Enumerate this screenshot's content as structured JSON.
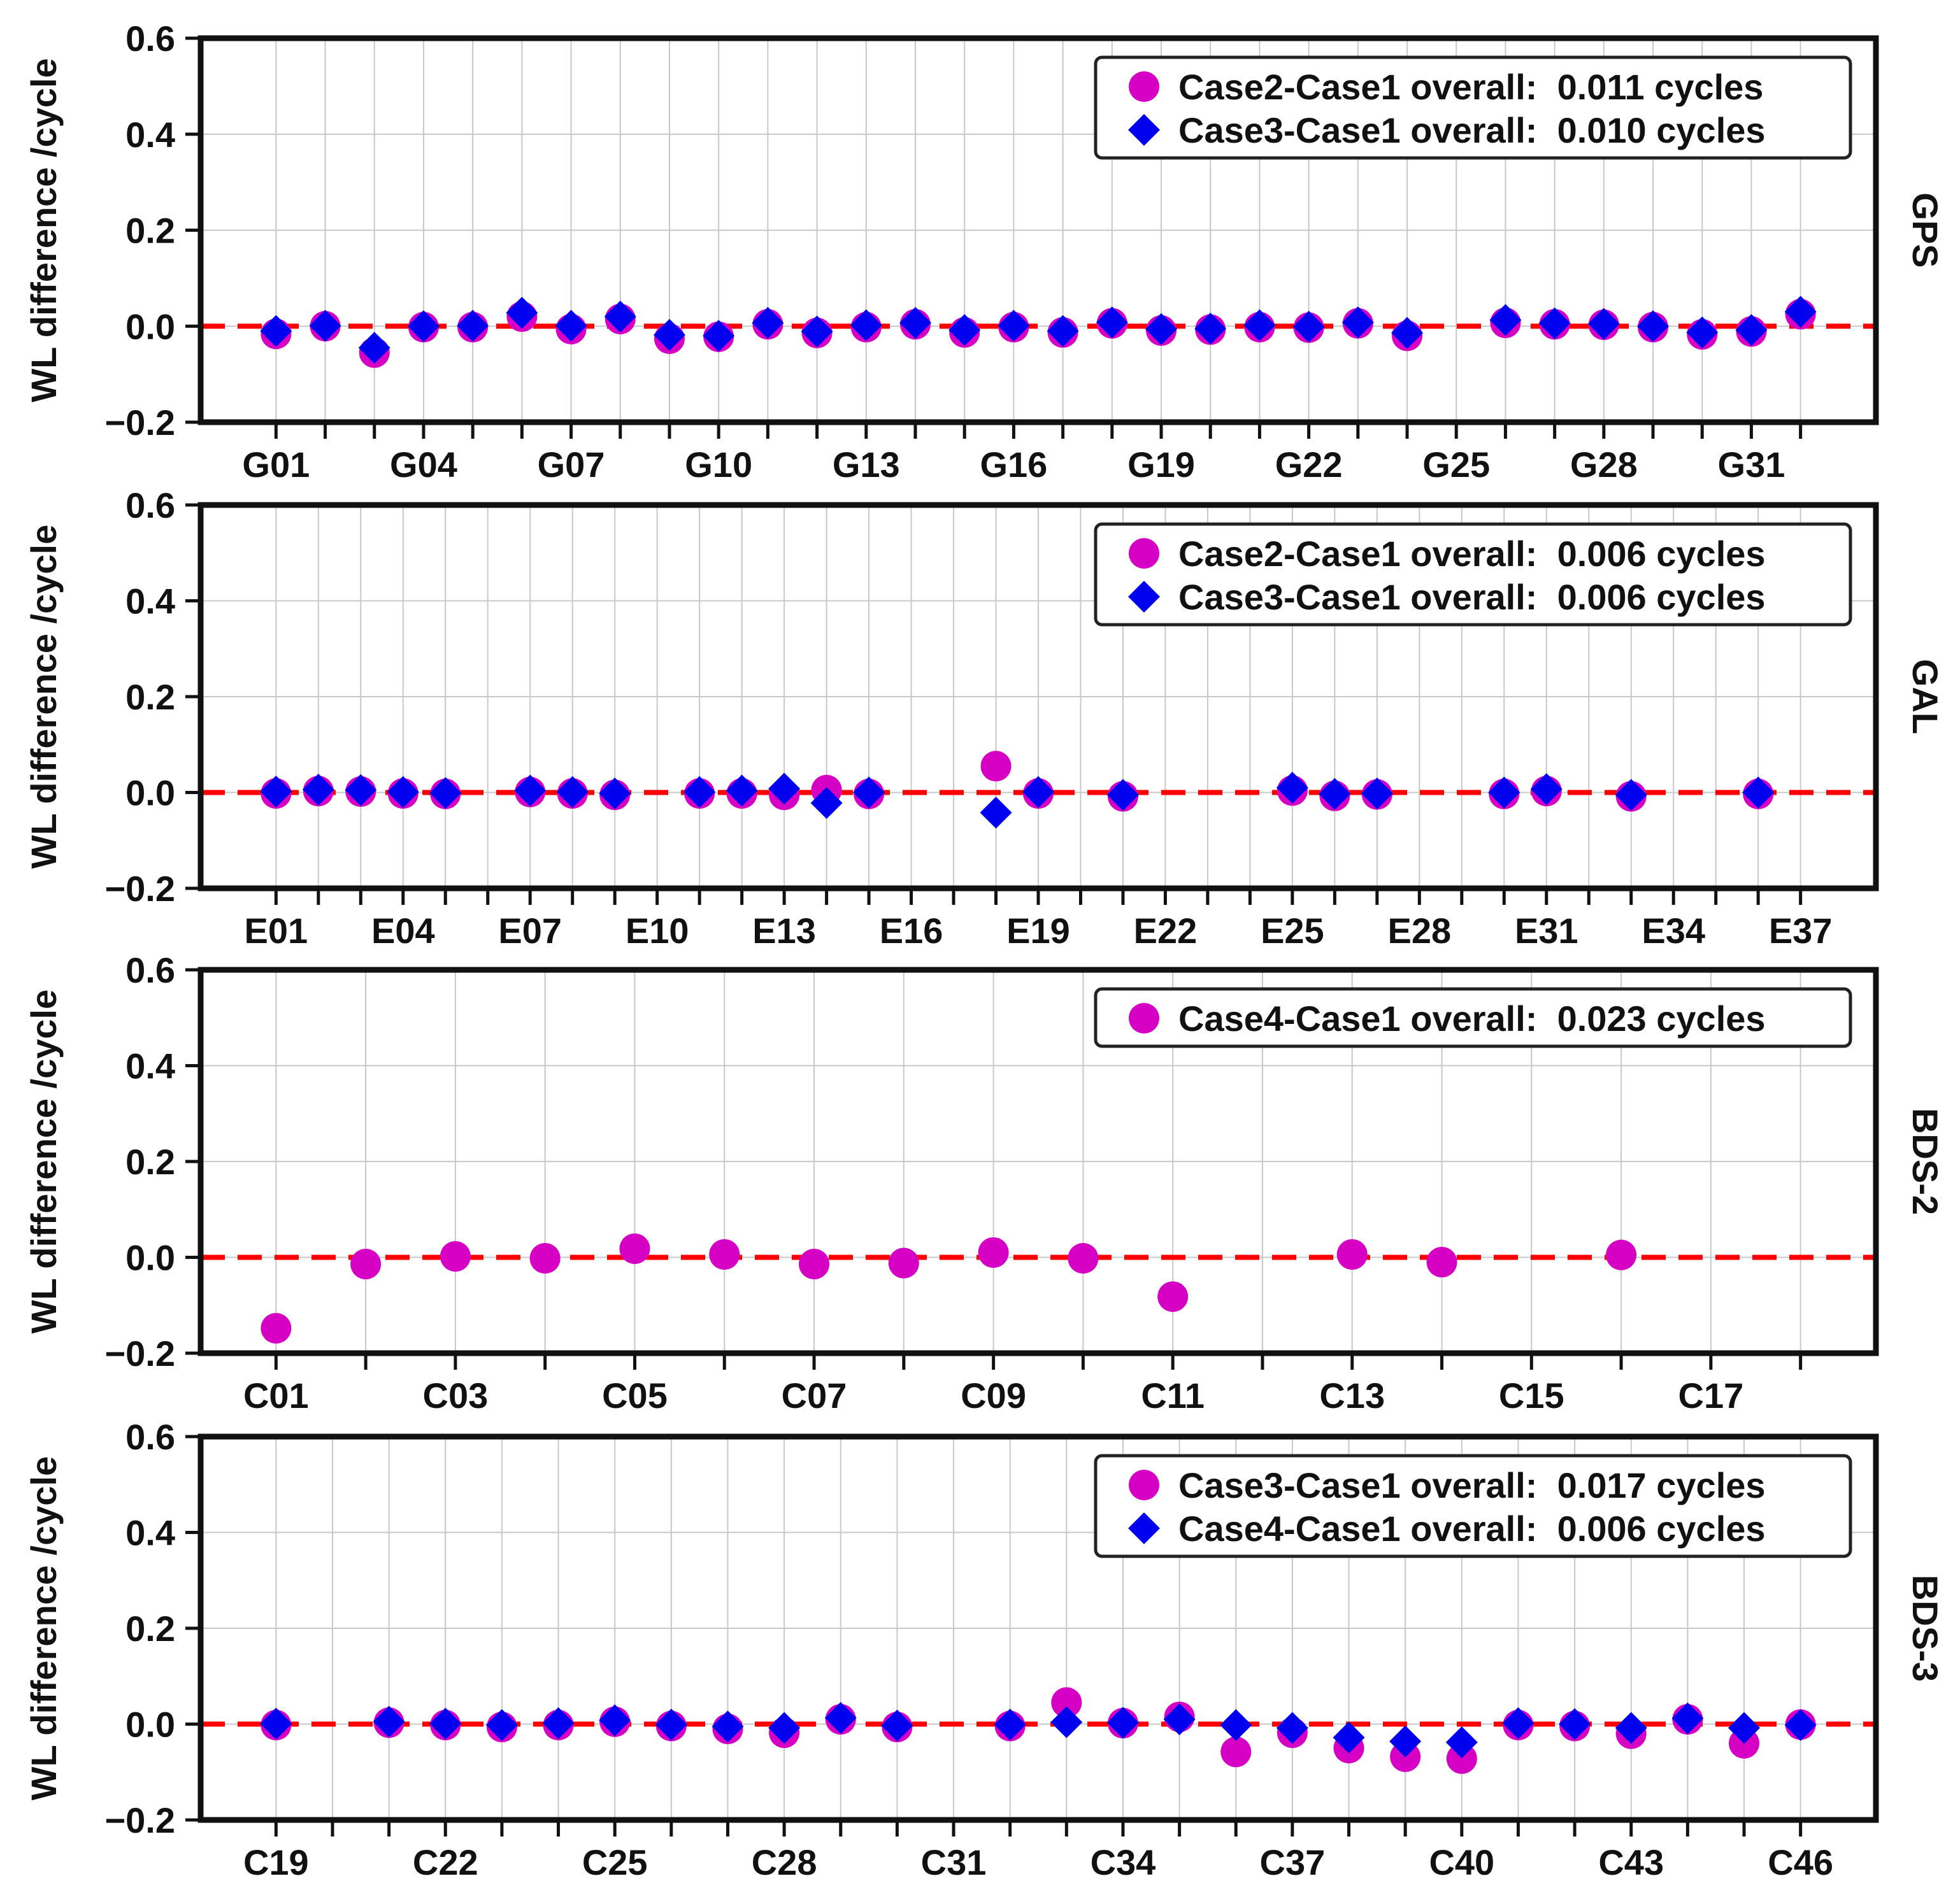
{
  "figure": {
    "ylabel": "WL difference /cycle",
    "colors": {
      "marker1": "#d600c4",
      "marker2": "#0000ee",
      "zero_line": "#ff0000",
      "grid": "#c8c8c8",
      "frame": "#111111"
    }
  },
  "chart_data": [
    {
      "type": "scatter",
      "system": "GPS",
      "ylabel": "WL difference /cycle",
      "ylim": [
        -0.2,
        0.6
      ],
      "yticks": [
        "0.6",
        "0.4",
        "0.2",
        "0.0",
        "−0.2"
      ],
      "ytick_values": [
        0.6,
        0.4,
        0.2,
        0.0,
        -0.2
      ],
      "categories": [
        "G01",
        "G02",
        "G03",
        "G04",
        "G05",
        "G06",
        "G07",
        "G08",
        "G09",
        "G10",
        "G11",
        "G12",
        "G13",
        "G14",
        "G15",
        "G16",
        "G17",
        "G18",
        "G19",
        "G20",
        "G21",
        "G22",
        "G23",
        "G24",
        "G25",
        "G26",
        "G27",
        "G28",
        "G29",
        "G30",
        "G31",
        "G32"
      ],
      "xtick_labels": [
        "G01",
        "G04",
        "G07",
        "G10",
        "G13",
        "G16",
        "G19",
        "G22",
        "G25",
        "G28",
        "G31"
      ],
      "series": [
        {
          "name": "Case2-Case1",
          "marker": "circle",
          "legend": "Case2-Case1 overall:  0.011 cycles",
          "values": [
            -0.016,
            0.0,
            -0.055,
            -0.002,
            -0.002,
            0.02,
            -0.006,
            0.015,
            -0.026,
            -0.022,
            0.004,
            -0.014,
            -0.002,
            0.004,
            -0.013,
            -0.002,
            -0.013,
            0.006,
            -0.009,
            -0.007,
            -0.002,
            -0.003,
            0.006,
            -0.02,
            null,
            0.007,
            0.004,
            0.003,
            -0.002,
            -0.017,
            -0.011,
            0.025
          ]
        },
        {
          "name": "Case3-Case1",
          "marker": "diamond",
          "legend": "Case3-Case1 overall:  0.010 cycles",
          "values": [
            -0.01,
            0.001,
            -0.045,
            0.0,
            0.001,
            0.028,
            0.001,
            0.02,
            -0.018,
            -0.02,
            0.007,
            -0.011,
            0.002,
            0.007,
            -0.008,
            0.001,
            -0.01,
            0.008,
            -0.006,
            -0.005,
            0.002,
            -0.001,
            0.008,
            -0.014,
            null,
            0.013,
            0.006,
            0.005,
            0.0,
            -0.013,
            -0.008,
            0.03
          ]
        }
      ]
    },
    {
      "type": "scatter",
      "system": "GAL",
      "ylabel": "WL difference /cycle",
      "ylim": [
        -0.2,
        0.6
      ],
      "yticks": [
        "0.6",
        "0.4",
        "0.2",
        "0.0",
        "−0.2"
      ],
      "ytick_values": [
        0.6,
        0.4,
        0.2,
        0.0,
        -0.2
      ],
      "categories": [
        "E01",
        "E02",
        "E03",
        "E04",
        "E05",
        "E06",
        "E07",
        "E08",
        "E09",
        "E10",
        "E11",
        "E12",
        "E13",
        "E14",
        "E15",
        "E16",
        "E17",
        "E18",
        "E19",
        "E20",
        "E21",
        "E22",
        "E23",
        "E24",
        "E25",
        "E26",
        "E27",
        "E28",
        "E29",
        "E30",
        "E31",
        "E32",
        "E33",
        "E34",
        "E35",
        "E36",
        "E37"
      ],
      "xtick_labels": [
        "E01",
        "E04",
        "E07",
        "E10",
        "E13",
        "E16",
        "E19",
        "E22",
        "E25",
        "E28",
        "E31",
        "E34",
        "E37"
      ],
      "series": [
        {
          "name": "Case2-Case1",
          "marker": "circle",
          "legend": "Case2-Case1 overall:  0.006 cycles",
          "values": [
            -0.002,
            0.003,
            0.002,
            -0.002,
            -0.003,
            null,
            0.001,
            -0.002,
            -0.005,
            null,
            -0.002,
            -0.002,
            -0.005,
            0.005,
            -0.003,
            null,
            null,
            0.055,
            -0.002,
            null,
            -0.008,
            null,
            null,
            null,
            0.004,
            -0.007,
            -0.004,
            null,
            null,
            -0.003,
            0.003,
            null,
            -0.008,
            null,
            null,
            -0.003,
            null
          ]
        },
        {
          "name": "Case3-Case1",
          "marker": "diamond",
          "legend": "Case3-Case1 overall:  0.006 cycles",
          "values": [
            0.002,
            0.006,
            0.005,
            0.001,
            -0.001,
            null,
            0.004,
            0.001,
            -0.002,
            null,
            0.001,
            0.004,
            0.008,
            -0.022,
            0.0,
            null,
            null,
            -0.042,
            0.001,
            null,
            -0.005,
            null,
            null,
            null,
            0.01,
            -0.003,
            -0.002,
            null,
            null,
            0.0,
            0.007,
            null,
            -0.005,
            null,
            null,
            0.0,
            null
          ]
        }
      ]
    },
    {
      "type": "scatter",
      "system": "BDS-2",
      "ylabel": "WL difference /cycle",
      "ylim": [
        -0.2,
        0.6
      ],
      "yticks": [
        "0.6",
        "0.4",
        "0.2",
        "0.0",
        "−0.2"
      ],
      "ytick_values": [
        0.6,
        0.4,
        0.2,
        0.0,
        -0.2
      ],
      "categories": [
        "C01",
        "C02",
        "C03",
        "C04",
        "C05",
        "C06",
        "C07",
        "C08",
        "C09",
        "C10",
        "C11",
        "C12",
        "C13",
        "C14",
        "C15",
        "C16",
        "C17",
        "C18"
      ],
      "xtick_labels": [
        "C01",
        "C03",
        "C05",
        "C07",
        "C09",
        "C11",
        "C13",
        "C15",
        "C17"
      ],
      "series": [
        {
          "name": "Case4-Case1",
          "marker": "circle",
          "legend": "Case4-Case1 overall:  0.023 cycles",
          "values": [
            -0.148,
            -0.014,
            0.002,
            -0.002,
            0.018,
            0.006,
            -0.014,
            -0.012,
            0.01,
            -0.002,
            -0.082,
            null,
            0.006,
            -0.01,
            null,
            0.005,
            null,
            null
          ]
        }
      ]
    },
    {
      "type": "scatter",
      "system": "BDS-3",
      "ylabel": "WL difference /cycle",
      "ylim": [
        -0.2,
        0.6
      ],
      "yticks": [
        "0.6",
        "0.4",
        "0.2",
        "0.0",
        "−0.2"
      ],
      "ytick_values": [
        0.6,
        0.4,
        0.2,
        0.0,
        -0.2
      ],
      "categories": [
        "C19",
        "C20",
        "C21",
        "C22",
        "C23",
        "C24",
        "C25",
        "C26",
        "C27",
        "C28",
        "C29",
        "C30",
        "C31",
        "C32",
        "C33",
        "C34",
        "C35",
        "C36",
        "C37",
        "C38",
        "C39",
        "C40",
        "C41",
        "C42",
        "C43",
        "C44",
        "C45",
        "C46"
      ],
      "xtick_labels": [
        "C19",
        "C22",
        "C25",
        "C28",
        "C31",
        "C34",
        "C37",
        "C40",
        "C43",
        "C46"
      ],
      "series": [
        {
          "name": "Case3-Case1",
          "marker": "circle",
          "legend": "Case3-Case1 overall:  0.017 cycles",
          "values": [
            -0.002,
            null,
            0.003,
            -0.002,
            -0.006,
            -0.002,
            0.005,
            -0.004,
            -0.01,
            -0.018,
            0.01,
            -0.006,
            null,
            -0.004,
            0.045,
            0.002,
            0.015,
            -0.058,
            -0.018,
            -0.05,
            -0.068,
            -0.072,
            -0.002,
            -0.004,
            -0.02,
            0.01,
            -0.04,
            -0.001
          ]
        },
        {
          "name": "Case4-Case1",
          "marker": "diamond",
          "legend": "Case4-Case1 overall:  0.006 cycles",
          "values": [
            0.001,
            null,
            0.005,
            0.001,
            -0.002,
            0.002,
            0.008,
            -0.001,
            -0.005,
            -0.008,
            0.013,
            -0.003,
            null,
            -0.001,
            0.004,
            0.003,
            0.01,
            -0.002,
            -0.008,
            -0.028,
            -0.036,
            -0.038,
            0.002,
            0.0,
            -0.008,
            0.012,
            -0.008,
            -0.002
          ]
        }
      ]
    }
  ]
}
